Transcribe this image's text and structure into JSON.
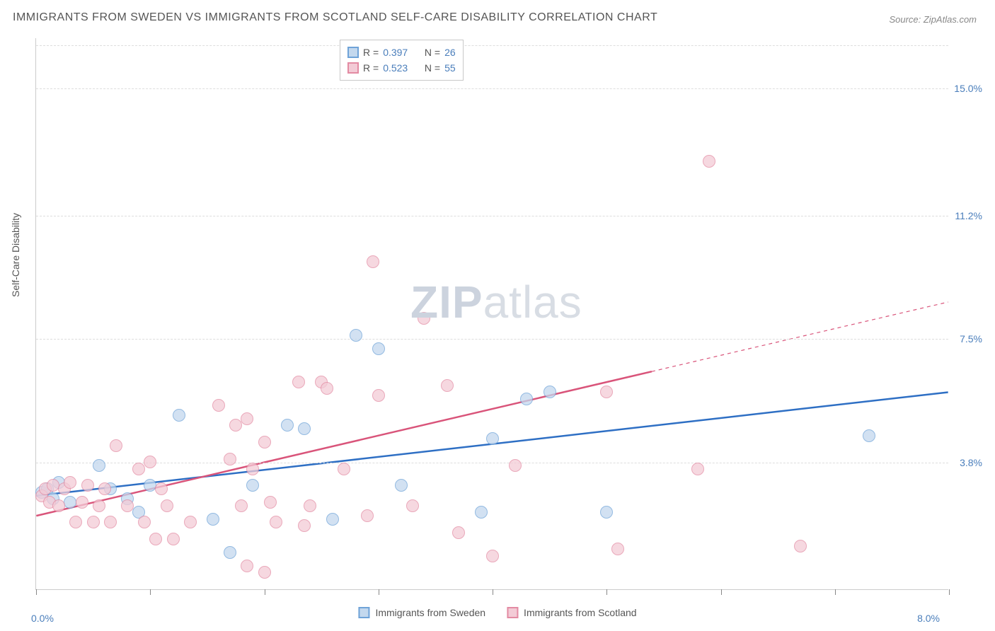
{
  "title": "IMMIGRANTS FROM SWEDEN VS IMMIGRANTS FROM SCOTLAND SELF-CARE DISABILITY CORRELATION CHART",
  "source": "Source: ZipAtlas.com",
  "ylabel": "Self-Care Disability",
  "watermark_a": "ZIP",
  "watermark_b": "atlas",
  "chart": {
    "type": "scatter",
    "xlim": [
      0,
      8
    ],
    "ylim": [
      0,
      16.5
    ],
    "x_tick_labels": {
      "left": "0.0%",
      "right": "8.0%"
    },
    "y_ticks": [
      {
        "v": 3.8,
        "label": "3.8%"
      },
      {
        "v": 7.5,
        "label": "7.5%"
      },
      {
        "v": 11.2,
        "label": "11.2%"
      },
      {
        "v": 15.0,
        "label": "15.0%"
      }
    ],
    "x_tick_marks": [
      0,
      1,
      2,
      3,
      4,
      5,
      6,
      7,
      8
    ],
    "background_color": "#ffffff",
    "grid_color": "#dddddd",
    "series": [
      {
        "name": "Immigrants from Sweden",
        "fill": "#c3d8ee",
        "stroke": "#6fa3d8",
        "line_color": "#2e6fc4",
        "r": "0.397",
        "n": "26",
        "trend": {
          "x1": 0.0,
          "y1": 2.8,
          "x2": 8.0,
          "y2": 5.9,
          "dash_from_x": null
        },
        "points": [
          [
            0.05,
            2.9
          ],
          [
            0.1,
            3.0
          ],
          [
            0.15,
            2.7
          ],
          [
            0.2,
            3.2
          ],
          [
            0.3,
            2.6
          ],
          [
            0.55,
            3.7
          ],
          [
            0.65,
            3.0
          ],
          [
            0.8,
            2.7
          ],
          [
            0.9,
            2.3
          ],
          [
            1.0,
            3.1
          ],
          [
            1.25,
            5.2
          ],
          [
            1.55,
            2.1
          ],
          [
            1.7,
            1.1
          ],
          [
            1.9,
            3.1
          ],
          [
            2.2,
            4.9
          ],
          [
            2.35,
            4.8
          ],
          [
            2.6,
            2.1
          ],
          [
            2.8,
            7.6
          ],
          [
            3.0,
            7.2
          ],
          [
            3.2,
            3.1
          ],
          [
            3.9,
            2.3
          ],
          [
            4.0,
            4.5
          ],
          [
            4.3,
            5.7
          ],
          [
            4.5,
            5.9
          ],
          [
            5.0,
            2.3
          ],
          [
            7.3,
            4.6
          ]
        ]
      },
      {
        "name": "Immigrants from Scotland",
        "fill": "#f3cbd6",
        "stroke": "#e38ba3",
        "line_color": "#d9547a",
        "r": "0.523",
        "n": "55",
        "trend": {
          "x1": 0.0,
          "y1": 2.2,
          "x2": 8.0,
          "y2": 8.6,
          "dash_from_x": 5.4
        },
        "points": [
          [
            0.05,
            2.8
          ],
          [
            0.08,
            3.0
          ],
          [
            0.12,
            2.6
          ],
          [
            0.15,
            3.1
          ],
          [
            0.2,
            2.5
          ],
          [
            0.25,
            3.0
          ],
          [
            0.3,
            3.2
          ],
          [
            0.35,
            2.0
          ],
          [
            0.4,
            2.6
          ],
          [
            0.45,
            3.1
          ],
          [
            0.5,
            2.0
          ],
          [
            0.55,
            2.5
          ],
          [
            0.6,
            3.0
          ],
          [
            0.65,
            2.0
          ],
          [
            0.7,
            4.3
          ],
          [
            0.8,
            2.5
          ],
          [
            0.9,
            3.6
          ],
          [
            0.95,
            2.0
          ],
          [
            1.0,
            3.8
          ],
          [
            1.05,
            1.5
          ],
          [
            1.1,
            3.0
          ],
          [
            1.15,
            2.5
          ],
          [
            1.2,
            1.5
          ],
          [
            1.35,
            2.0
          ],
          [
            1.6,
            5.5
          ],
          [
            1.7,
            3.9
          ],
          [
            1.75,
            4.9
          ],
          [
            1.8,
            2.5
          ],
          [
            1.85,
            5.1
          ],
          [
            1.85,
            0.7
          ],
          [
            1.9,
            3.6
          ],
          [
            2.0,
            4.4
          ],
          [
            2.0,
            0.5
          ],
          [
            2.05,
            2.6
          ],
          [
            2.1,
            2.0
          ],
          [
            2.3,
            6.2
          ],
          [
            2.35,
            1.9
          ],
          [
            2.4,
            2.5
          ],
          [
            2.5,
            6.2
          ],
          [
            2.55,
            6.0
          ],
          [
            2.7,
            3.6
          ],
          [
            2.9,
            2.2
          ],
          [
            2.95,
            9.8
          ],
          [
            3.0,
            5.8
          ],
          [
            3.3,
            2.5
          ],
          [
            3.4,
            8.1
          ],
          [
            3.6,
            6.1
          ],
          [
            3.7,
            1.7
          ],
          [
            4.0,
            1.0
          ],
          [
            4.2,
            3.7
          ],
          [
            5.0,
            5.9
          ],
          [
            5.1,
            1.2
          ],
          [
            5.8,
            3.6
          ],
          [
            5.9,
            12.8
          ],
          [
            6.7,
            1.3
          ]
        ]
      }
    ]
  },
  "legend_top_cols": {
    "r": "R =",
    "n": "N ="
  }
}
